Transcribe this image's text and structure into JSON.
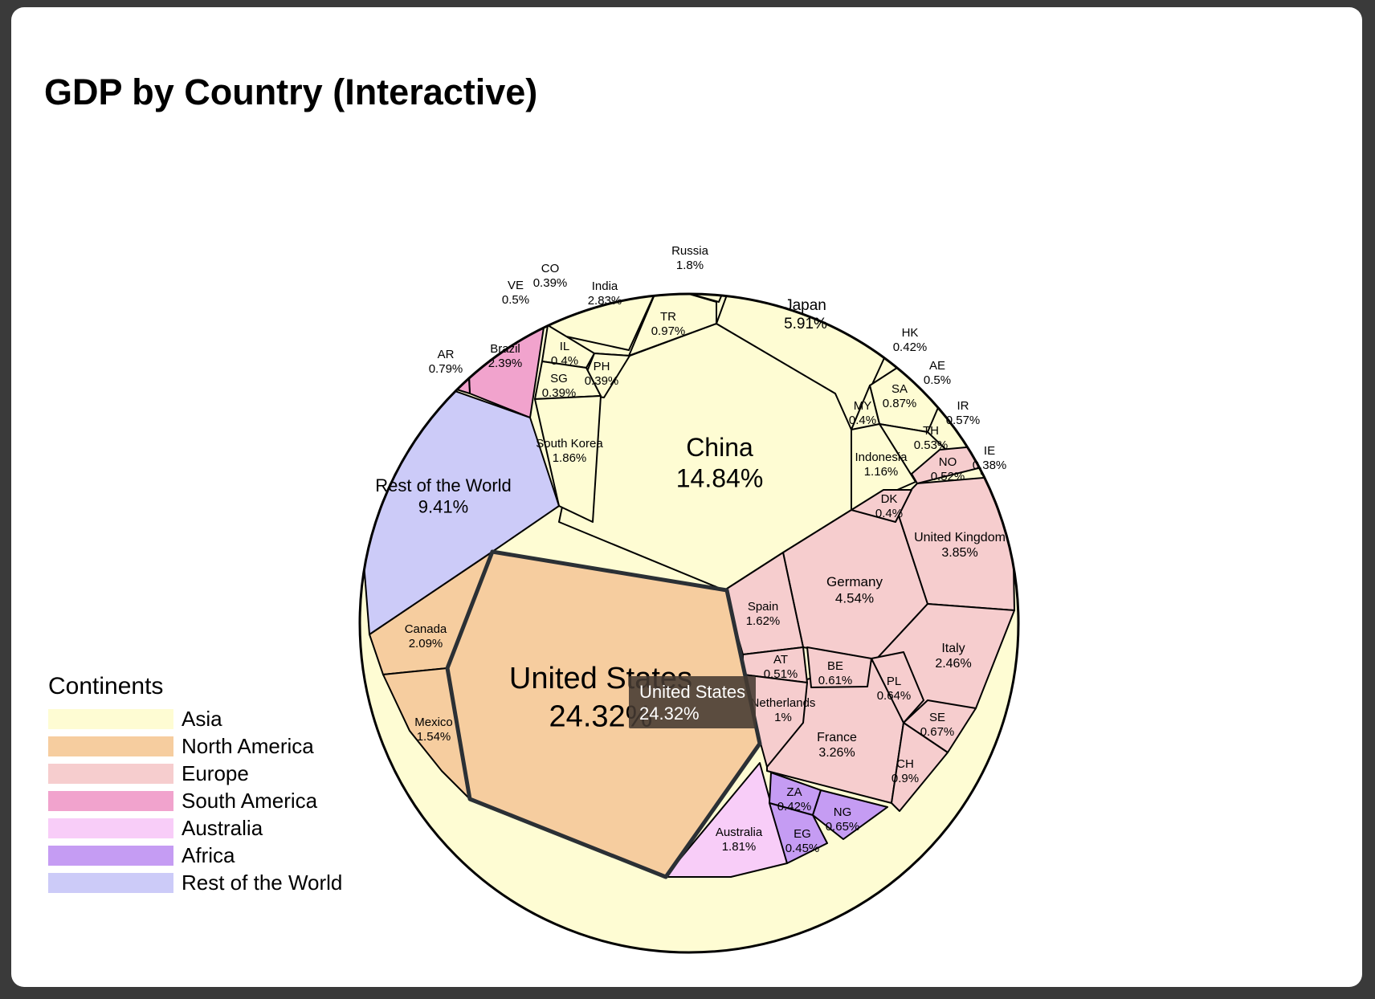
{
  "chart_data": {
    "type": "voronoi-treemap",
    "title": "GDP by Country (Interactive)",
    "legend": {
      "title": "Continents",
      "placement": "bottom-left",
      "items": [
        {
          "label": "Asia",
          "color": "#fefcd3"
        },
        {
          "label": "North America",
          "color": "#f6cd9f"
        },
        {
          "label": "Europe",
          "color": "#f6cdce"
        },
        {
          "label": "South America",
          "color": "#f1a3cd"
        },
        {
          "label": "Australia",
          "color": "#f8cdf8"
        },
        {
          "label": "Africa",
          "color": "#c59cf3"
        },
        {
          "label": "Rest of the World",
          "color": "#cccbf8"
        }
      ]
    },
    "cells": [
      {
        "name": "United States",
        "value": "24.32%",
        "continent": "North America"
      },
      {
        "name": "Canada",
        "value": "2.09%",
        "continent": "North America"
      },
      {
        "name": "Mexico",
        "value": "1.54%",
        "continent": "North America"
      },
      {
        "name": "China",
        "value": "14.84%",
        "continent": "Asia"
      },
      {
        "name": "Japan",
        "value": "5.91%",
        "continent": "Asia"
      },
      {
        "name": "India",
        "value": "2.83%",
        "continent": "Asia"
      },
      {
        "name": "Russia",
        "value": "1.8%",
        "continent": "Asia"
      },
      {
        "name": "TR",
        "value": "0.97%",
        "continent": "Asia"
      },
      {
        "name": "IL",
        "value": "0.4%",
        "continent": "Asia"
      },
      {
        "name": "PH",
        "value": "0.39%",
        "continent": "Asia"
      },
      {
        "name": "SG",
        "value": "0.39%",
        "continent": "Asia"
      },
      {
        "name": "South Korea",
        "value": "1.86%",
        "continent": "Asia"
      },
      {
        "name": "HK",
        "value": "0.42%",
        "continent": "Asia"
      },
      {
        "name": "AE",
        "value": "0.5%",
        "continent": "Asia"
      },
      {
        "name": "SA",
        "value": "0.87%",
        "continent": "Asia"
      },
      {
        "name": "MY",
        "value": "0.4%",
        "continent": "Asia"
      },
      {
        "name": "IR",
        "value": "0.57%",
        "continent": "Asia"
      },
      {
        "name": "TH",
        "value": "0.53%",
        "continent": "Asia"
      },
      {
        "name": "Indonesia",
        "value": "1.16%",
        "continent": "Asia"
      },
      {
        "name": "Germany",
        "value": "4.54%",
        "continent": "Europe"
      },
      {
        "name": "United Kingdom",
        "value": "3.85%",
        "continent": "Europe"
      },
      {
        "name": "France",
        "value": "3.26%",
        "continent": "Europe"
      },
      {
        "name": "Italy",
        "value": "2.46%",
        "continent": "Europe"
      },
      {
        "name": "Spain",
        "value": "1.62%",
        "continent": "Europe"
      },
      {
        "name": "AT",
        "value": "0.51%",
        "continent": "Europe"
      },
      {
        "name": "BE",
        "value": "0.61%",
        "continent": "Europe"
      },
      {
        "name": "PL",
        "value": "0.64%",
        "continent": "Europe"
      },
      {
        "name": "SE",
        "value": "0.67%",
        "continent": "Europe"
      },
      {
        "name": "CH",
        "value": "0.9%",
        "continent": "Europe"
      },
      {
        "name": "NO",
        "value": "0.52%",
        "continent": "Europe"
      },
      {
        "name": "IE",
        "value": "0.38%",
        "continent": "Europe"
      },
      {
        "name": "DK",
        "value": "0.4%",
        "continent": "Europe"
      },
      {
        "name": "Netherlands",
        "value": "1%",
        "continent": "Europe"
      },
      {
        "name": "Brazil",
        "value": "2.39%",
        "continent": "South America"
      },
      {
        "name": "AR",
        "value": "0.79%",
        "continent": "South America"
      },
      {
        "name": "VE",
        "value": "0.5%",
        "continent": "South America"
      },
      {
        "name": "CO",
        "value": "0.39%",
        "continent": "South America"
      },
      {
        "name": "Australia",
        "value": "1.81%",
        "continent": "Australia"
      },
      {
        "name": "ZA",
        "value": "0.42%",
        "continent": "Africa"
      },
      {
        "name": "NG",
        "value": "0.65%",
        "continent": "Africa"
      },
      {
        "name": "EG",
        "value": "0.45%",
        "continent": "Africa"
      },
      {
        "name": "Rest of the World",
        "value": "9.41%",
        "continent": "Rest of the World"
      }
    ],
    "highlighted": "United States"
  },
  "tooltip": {
    "name": "United States",
    "value": "24.32%"
  }
}
